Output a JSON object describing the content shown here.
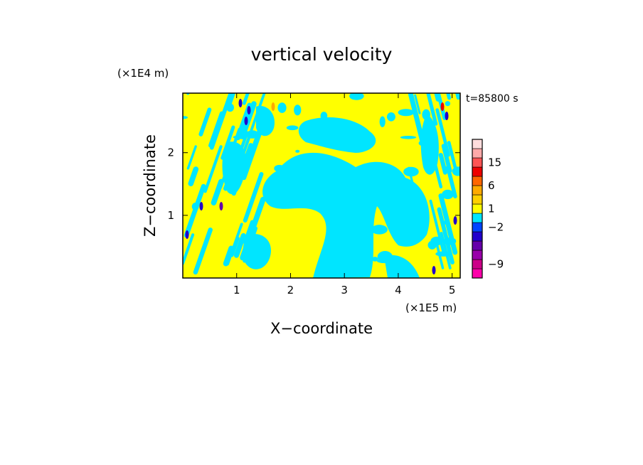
{
  "chart_data": {
    "type": "heatmap",
    "title": "vertical velocity",
    "xlabel": "X−coordinate",
    "ylabel": "Z−coordinate",
    "x_unit": "(×1E5 m)",
    "y_unit": "(×1E4 m)",
    "time_label": "t=85800 s",
    "xlim": [
      0,
      5.15
    ],
    "ylim": [
      0,
      2.95
    ],
    "x_ticks": [
      1,
      2,
      3,
      4,
      5
    ],
    "y_ticks": [
      1,
      2
    ],
    "colorbar": {
      "levels": [
        {
          "color": "#ff00aa"
        },
        {
          "color": "#cc0088"
        },
        {
          "color": "#9900aa"
        },
        {
          "color": "#6600aa"
        },
        {
          "color": "#2200cc"
        },
        {
          "color": "#0044ff"
        },
        {
          "color": "#00e5ff"
        },
        {
          "color": "#ffff00"
        },
        {
          "color": "#ffd000"
        },
        {
          "color": "#ffaa00"
        },
        {
          "color": "#ff6600"
        },
        {
          "color": "#ee0000"
        },
        {
          "color": "#ff5555"
        },
        {
          "color": "#ffaaaa"
        },
        {
          "color": "#ffdddd"
        }
      ],
      "tick_labels": [
        "-9",
        "-2",
        "1",
        "6",
        "15"
      ]
    },
    "dominant_colors": {
      "positive": "#ffff00",
      "negative": "#00e5ff"
    }
  }
}
